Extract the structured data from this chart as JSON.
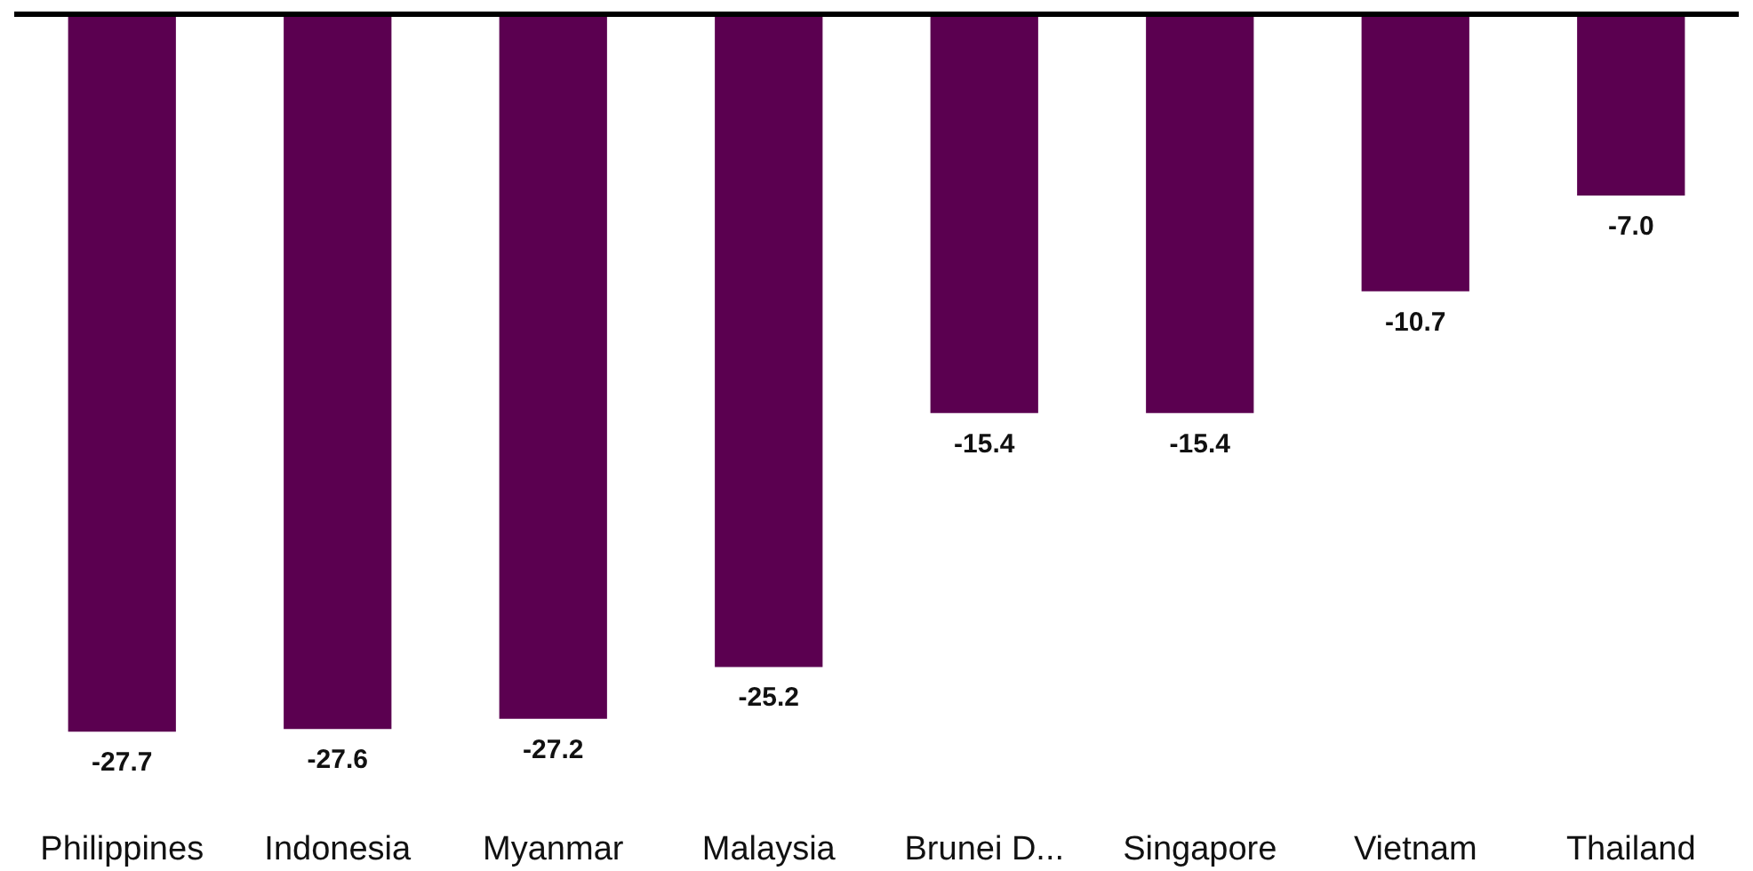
{
  "chart_data": {
    "type": "bar",
    "categories": [
      "Philippines",
      "Indonesia",
      "Myanmar",
      "Malaysia",
      "Brunei D...",
      "Singapore",
      "Vietnam",
      "Thailand"
    ],
    "values": [
      -27.7,
      -27.6,
      -27.2,
      -25.2,
      -15.4,
      -15.4,
      -10.7,
      -7.0
    ],
    "value_labels": [
      "-27.7",
      "-27.6",
      "-27.2",
      "-25.2",
      "-15.4",
      "-15.4",
      "-10.7",
      "-7.0"
    ],
    "color": "#5b0050"
  }
}
